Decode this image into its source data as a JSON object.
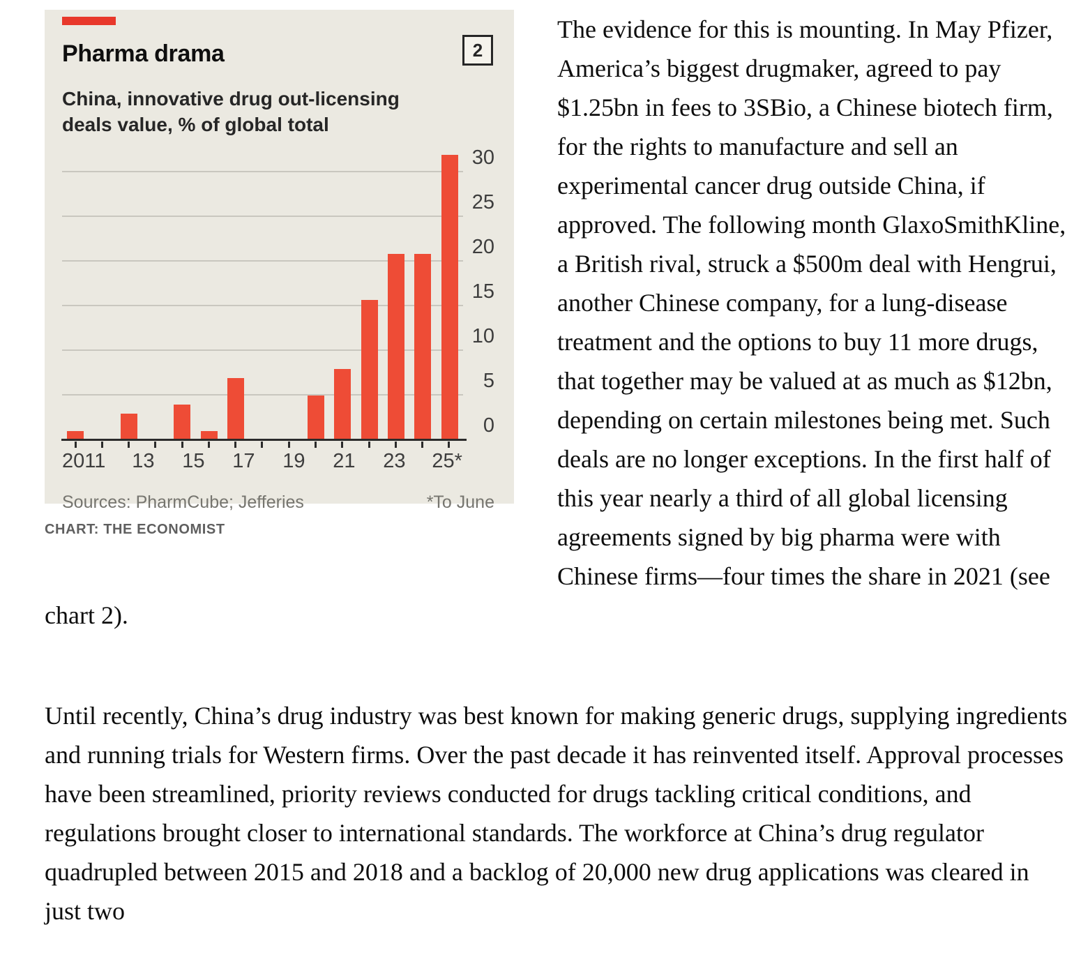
{
  "chart": {
    "tag_number": "2",
    "title": "Pharma drama",
    "subtitle_lines": [
      "China, innovative drug out-licensing",
      "deals value, % of global total"
    ],
    "sources": "Sources: PharmCube; Jefferies",
    "footnote": "*To June",
    "credit": "CHART: THE ECONOMIST",
    "colors": {
      "bar": "#ee4c36",
      "accent_tab": "#e8382b",
      "panel_background": "#ebe9e1",
      "gridline": "#c9c7bf",
      "axis": "#2b2b2b"
    }
  },
  "chart_data": {
    "type": "bar",
    "title": "Pharma drama",
    "subtitle": "China, innovative drug out-licensing deals value, % of global total",
    "categories": [
      2011,
      2012,
      2013,
      2014,
      2015,
      2016,
      2017,
      2018,
      2019,
      2020,
      2021,
      2022,
      2023,
      2024,
      2025
    ],
    "values": [
      0.9,
      0,
      2.9,
      0,
      3.9,
      0.9,
      6.9,
      0,
      0,
      4.9,
      7.9,
      15.6,
      20.8,
      20.8,
      31.9
    ],
    "x_tick_slot_labels": [
      "2011",
      "",
      "13",
      "",
      "15",
      "",
      "17",
      "",
      "19",
      "",
      "21",
      "",
      "23",
      "",
      "25*"
    ],
    "y_ticks": [
      0,
      5,
      10,
      15,
      20,
      25,
      30
    ],
    "ylim": [
      0,
      32.8
    ],
    "xlabel": "",
    "ylabel": "% of global total",
    "grid": "horizontal",
    "legend": "none",
    "footnote_2025": "To June",
    "bar_color": "#ee4c36"
  },
  "article": {
    "paragraphs": [
      "The evidence for this is mounting. In May Pfizer, America’s biggest drugmaker, agreed to pay $1.25bn in fees to 3SBio, a Chinese biotech firm, for the rights to manufacture and sell an experimental cancer drug outside China, if approved. The following month GlaxoSmithKline, a British rival, struck a $500m deal with Hengrui, another Chinese company, for a lung-disease treatment and the options to buy 11 more drugs, that together may be valued at as much as $12bn, depending on certain milestones being met. Such deals are no longer exceptions. In the first half of this year nearly a third of all global licensing agreements signed by big pharma were with Chinese firms—four times the share in 2021 (see chart 2).",
      "Until recently, China’s drug industry was best known for making generic drugs, supplying ingredients and running trials for Western firms. Over the past decade it has reinvented itself. Approval processes have been streamlined, priority reviews conducted for drugs tackling critical conditions, and regulations brought closer to international standards. The workforce at China’s drug regulator quadrupled between 2015 and 2018 and a backlog of 20,000 new drug applications was cleared in just two"
    ]
  }
}
